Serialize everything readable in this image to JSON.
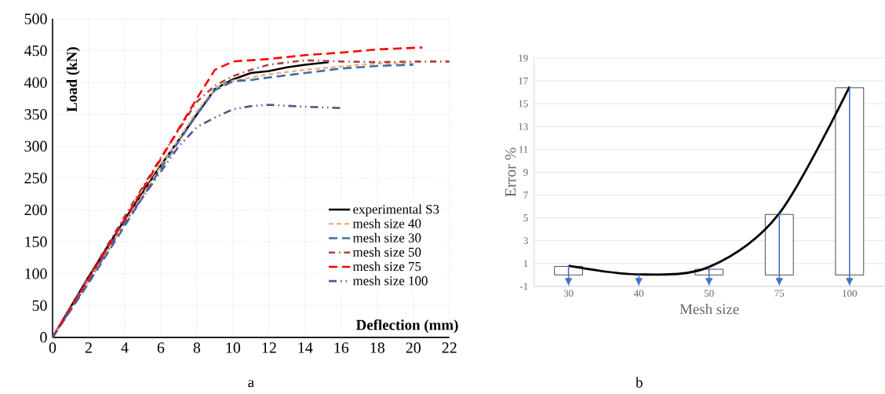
{
  "chart_data": [
    {
      "type": "line",
      "xlabel": "Deflection (mm)",
      "ylabel": "Load (kN)",
      "annotations": [
        "a"
      ],
      "xlim": [
        0,
        22
      ],
      "xticks": [
        0,
        2,
        4,
        6,
        8,
        10,
        12,
        14,
        16,
        18,
        20,
        22
      ],
      "ylim": [
        0,
        500
      ],
      "yticks": [
        0,
        50,
        100,
        150,
        200,
        250,
        300,
        350,
        400,
        450,
        500
      ],
      "grid": true,
      "legend": "bottom right",
      "series": [
        {
          "name": "experimental S3",
          "color": "#000000",
          "line_style": "solid",
          "x": [
            0,
            2,
            4,
            6,
            7,
            8,
            9,
            10,
            11,
            12,
            13,
            14,
            15.3
          ],
          "values": [
            0,
            95,
            185,
            270,
            310,
            350,
            390,
            405,
            415,
            418,
            424,
            428,
            432
          ]
        },
        {
          "name": "mesh size 40",
          "color": "#f4b183",
          "line_style": "dashed",
          "x": [
            0,
            2,
            4,
            6,
            8,
            9,
            10,
            11,
            12,
            14,
            16,
            18,
            20
          ],
          "values": [
            0,
            88,
            180,
            268,
            355,
            390,
            403,
            408,
            413,
            420,
            425,
            430,
            430
          ]
        },
        {
          "name": "mesh size 30",
          "color": "#3f6ea8",
          "line_style": "long dashed",
          "x": [
            0,
            2,
            4,
            6,
            8,
            9,
            10,
            11,
            12,
            14,
            16,
            18,
            20
          ],
          "values": [
            0,
            85,
            175,
            265,
            350,
            388,
            402,
            404,
            408,
            415,
            422,
            426,
            428
          ]
        },
        {
          "name": "mesh size 50",
          "color": "#a9433f",
          "line_style": "dash dot",
          "x": [
            0,
            2,
            4,
            6,
            8,
            9,
            10,
            11,
            12,
            14,
            16,
            18,
            20,
            22
          ],
          "values": [
            0,
            95,
            190,
            282,
            370,
            395,
            410,
            420,
            428,
            435,
            433,
            432,
            433,
            433
          ]
        },
        {
          "name": "mesh size 75",
          "color": "#ff0000",
          "line_style": "long dashed",
          "x": [
            0,
            2,
            4,
            6,
            8,
            9,
            10,
            11,
            12,
            14,
            16,
            18,
            20.5
          ],
          "values": [
            0,
            92,
            185,
            280,
            375,
            420,
            433,
            435,
            437,
            443,
            447,
            452,
            455
          ]
        },
        {
          "name": "mesh size 100",
          "color": "#664e8a",
          "line_style": "dash dot dot",
          "x": [
            0,
            2,
            4,
            6,
            7,
            8,
            9,
            10,
            11,
            12,
            14,
            16
          ],
          "values": [
            0,
            88,
            180,
            260,
            300,
            330,
            345,
            358,
            363,
            365,
            362,
            360
          ]
        }
      ]
    },
    {
      "type": "bar",
      "xlabel": "Mesh size",
      "ylabel": "Error %",
      "annotations": [
        "b"
      ],
      "categories": [
        "30",
        "40",
        "50",
        "75",
        "100"
      ],
      "ylim": [
        -1,
        19
      ],
      "yticks": [
        -1,
        1,
        3,
        5,
        7,
        9,
        11,
        13,
        15,
        17,
        19
      ],
      "grid": "y",
      "series": [
        {
          "type": "bar",
          "color": "#ffffff",
          "values": [
            0.75,
            null,
            0.5,
            5.3,
            16.4
          ]
        },
        {
          "type": "line",
          "color": "#000000",
          "values": [
            0.8,
            0.05,
            0.7,
            5.4,
            16.5
          ],
          "errors": [
            [
              -0.8,
              0.8
            ],
            [
              -0.8,
              0.05
            ],
            [
              -0.8,
              0.7
            ],
            [
              -0.8,
              5.4
            ],
            [
              -0.8,
              16.5
            ]
          ]
        }
      ]
    }
  ]
}
